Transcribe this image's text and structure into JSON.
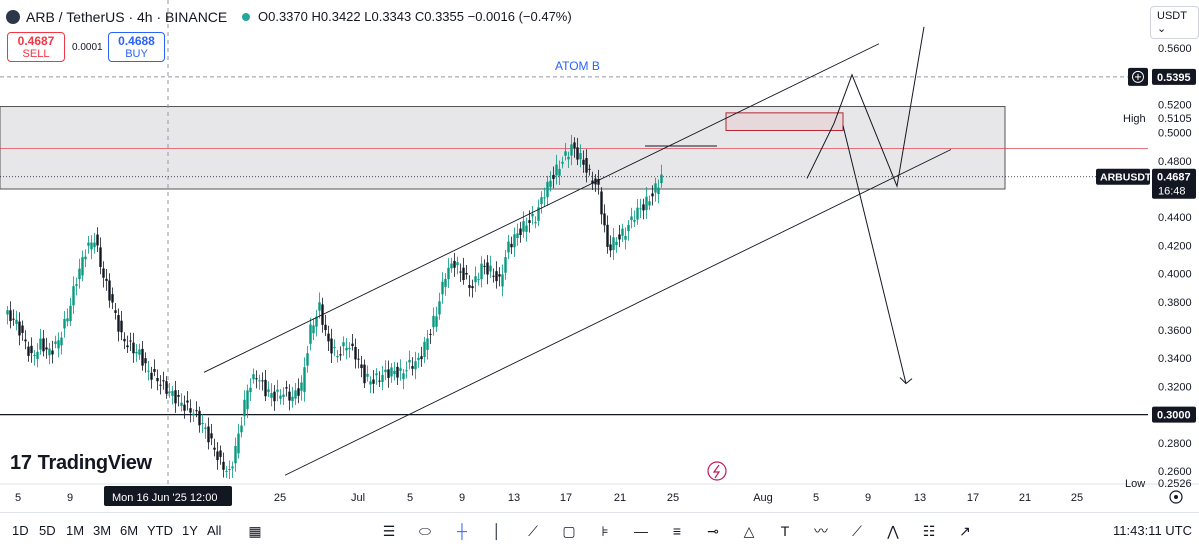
{
  "header": {
    "symbol": "ARB / TetherUS · 4h · BINANCE",
    "ohlc": "O0.3370 H0.3422 L0.3343 C0.3355 −0.0016 (−0.47%)",
    "currency": "USDT ⌄"
  },
  "trade": {
    "sell_price": "0.4687",
    "sell_label": "SELL",
    "buy_price": "0.4688",
    "buy_label": "BUY",
    "spread": "0.0001"
  },
  "annotation": {
    "atom_label": "ATOM B"
  },
  "branding": {
    "logo_text": "TradingView",
    "logo_mark": "17"
  },
  "bottom": {
    "timeframes": [
      "1D",
      "5D",
      "1M",
      "3M",
      "6M",
      "YTD",
      "1Y",
      "All"
    ],
    "clock": "11:43:11 UTC"
  },
  "icons": [
    "calendar-icon",
    "cursor-icon",
    "plus-icon",
    "crosshair-icon",
    "pencil-icon",
    "trendline-icon",
    "rectangle-icon",
    "fib-icon",
    "horizontal-line-icon",
    "channel-icon",
    "ray-icon",
    "pattern-icon",
    "text-icon",
    "path-icon",
    "brush-icon",
    "elliott-icon",
    "gann-icon",
    "arrow-icon",
    "settings-icon"
  ],
  "chart_data": {
    "type": "candlestick",
    "symbol": "ARBUSDT",
    "ylim": [
      0.2526,
      0.5752
    ],
    "y_ticks": [
      0.26,
      0.28,
      0.3,
      0.32,
      0.34,
      0.36,
      0.38,
      0.4,
      0.42,
      0.44,
      0.46,
      0.48,
      0.5,
      0.52,
      0.54,
      0.56
    ],
    "y_tick_labels": [
      "0.2600",
      "0.2800",
      "0.3000",
      "0.3200",
      "0.3400",
      "0.3600",
      "0.3800",
      "0.4000",
      "0.4200",
      "0.4400",
      "0.4600",
      "0.4800",
      "0.5000",
      "0.5200",
      "0.5400",
      "0.5600"
    ],
    "x_tick_labels": [
      "5",
      "9",
      "25",
      "Jul",
      "5",
      "9",
      "13",
      "17",
      "21",
      "25",
      "Aug",
      "5",
      "9",
      "13",
      "17",
      "21",
      "25"
    ],
    "crosshair_date": "Mon 16 Jun '25   12:00",
    "price_badges": {
      "line_price": "0.5395",
      "high_label": "High",
      "high_price": "0.5105",
      "symbol_label": "ARBUSDT",
      "current_price": "0.4687",
      "countdown": "16:48",
      "support_price": "0.3000",
      "low_label": "Low",
      "low_price": "0.2526"
    },
    "price_path": [
      [
        0,
        0.371
      ],
      [
        1,
        0.368
      ],
      [
        2,
        0.356
      ],
      [
        3,
        0.34
      ],
      [
        4,
        0.35
      ],
      [
        5,
        0.344
      ],
      [
        6,
        0.352
      ],
      [
        7,
        0.37
      ],
      [
        8,
        0.396
      ],
      [
        9,
        0.416
      ],
      [
        10,
        0.425
      ],
      [
        11,
        0.398
      ],
      [
        12,
        0.378
      ],
      [
        13,
        0.355
      ],
      [
        14,
        0.348
      ],
      [
        15,
        0.343
      ],
      [
        16,
        0.33
      ],
      [
        17,
        0.325
      ],
      [
        18,
        0.318
      ],
      [
        19,
        0.312
      ],
      [
        20,
        0.306
      ],
      [
        21,
        0.302
      ],
      [
        22,
        0.293
      ],
      [
        23,
        0.28
      ],
      [
        24,
        0.266
      ],
      [
        25,
        0.258
      ],
      [
        26,
        0.285
      ],
      [
        27,
        0.318
      ],
      [
        28,
        0.328
      ],
      [
        29,
        0.317
      ],
      [
        30,
        0.313
      ],
      [
        31,
        0.316
      ],
      [
        32,
        0.312
      ],
      [
        33,
        0.32
      ],
      [
        34,
        0.36
      ],
      [
        35,
        0.376
      ],
      [
        36,
        0.35
      ],
      [
        37,
        0.342
      ],
      [
        38,
        0.35
      ],
      [
        39,
        0.343
      ],
      [
        40,
        0.326
      ],
      [
        41,
        0.324
      ],
      [
        42,
        0.328
      ],
      [
        43,
        0.331
      ],
      [
        44,
        0.329
      ],
      [
        45,
        0.335
      ],
      [
        46,
        0.338
      ],
      [
        47,
        0.354
      ],
      [
        48,
        0.372
      ],
      [
        49,
        0.4
      ],
      [
        50,
        0.408
      ],
      [
        51,
        0.398
      ],
      [
        52,
        0.39
      ],
      [
        53,
        0.405
      ],
      [
        54,
        0.402
      ],
      [
        55,
        0.394
      ],
      [
        56,
        0.42
      ],
      [
        57,
        0.428
      ],
      [
        58,
        0.436
      ],
      [
        59,
        0.44
      ],
      [
        60,
        0.458
      ],
      [
        61,
        0.47
      ],
      [
        62,
        0.48
      ],
      [
        63,
        0.49
      ],
      [
        64,
        0.482
      ],
      [
        65,
        0.47
      ],
      [
        66,
        0.46
      ],
      [
        67,
        0.418
      ],
      [
        68,
        0.424
      ],
      [
        69,
        0.43
      ],
      [
        70,
        0.442
      ],
      [
        71,
        0.448
      ],
      [
        72,
        0.456
      ],
      [
        73,
        0.469
      ]
    ],
    "zones": [
      {
        "name": "supply-zone",
        "y0": 0.46,
        "y1": 0.5185,
        "x0": -1,
        "x1": 111
      },
      {
        "name": "red-box",
        "y0": 0.5015,
        "y1": 0.514,
        "x0": 80,
        "x1": 93
      }
    ],
    "channel": {
      "upper": [
        [
          22,
          0.33
        ],
        [
          97,
          0.563
        ]
      ],
      "lower": [
        [
          31,
          0.257
        ],
        [
          105,
          0.488
        ]
      ]
    },
    "support_line": 0.3,
    "red_line": 0.4887,
    "projection_up": [
      [
        89,
        0.4675
      ],
      [
        92,
        0.5065
      ],
      [
        94,
        0.541
      ],
      [
        99,
        0.462
      ],
      [
        102,
        0.575
      ]
    ],
    "projection_down": [
      [
        93,
        0.505
      ],
      [
        100,
        0.322
      ]
    ]
  }
}
